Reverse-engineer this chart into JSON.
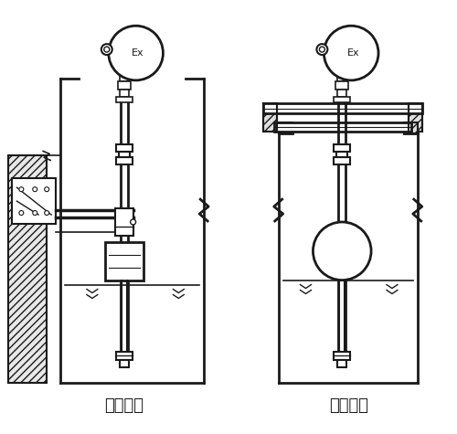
{
  "title_left": "架装固定",
  "title_right": "法兰固定",
  "bg_color": "#ffffff",
  "line_color": "#1a1a1a",
  "font_size_label": 13,
  "fig_width": 5.0,
  "fig_height": 4.75
}
